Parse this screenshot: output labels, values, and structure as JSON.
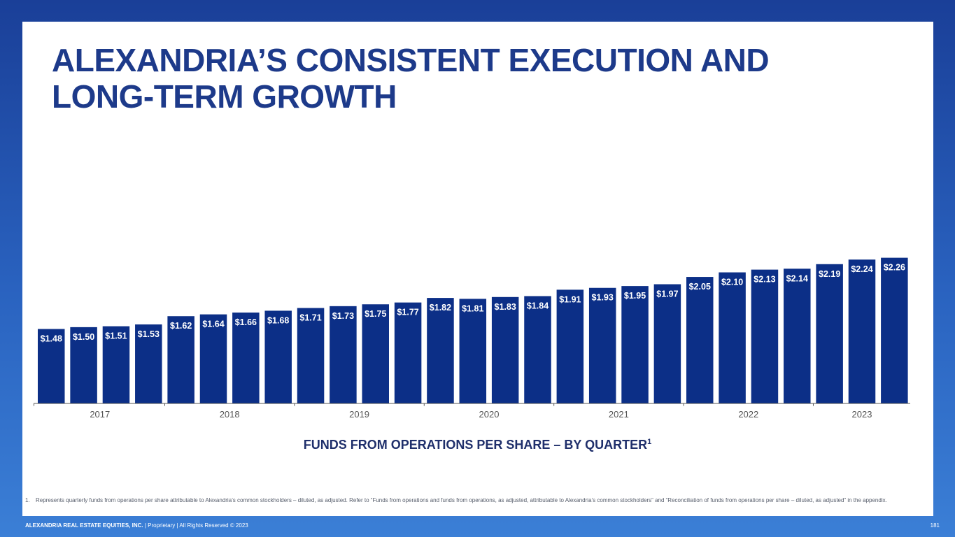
{
  "slide": {
    "title_lines": [
      "ALEXANDRIA’S CONSISTENT EXECUTION AND",
      "LONG-TERM GROWTH"
    ],
    "caption": "FUNDS FROM OPERATIONS PER SHARE – BY QUARTER",
    "caption_sup": "1",
    "footnote_number": "1.",
    "footnote_text": "Represents quarterly funds from operations per share attributable to Alexandria’s common stockholders – diluted, as adjusted. Refer to “Funds from operations and funds from operations, as adjusted, attributable to Alexandria’s common stockholders” and “Reconciliation of funds from operations per share – diluted, as adjusted” in the appendix.",
    "footer_company": "ALEXANDRIA REAL ESTATE EQUITIES, INC.",
    "footer_rest": " | Proprietary | All Rights Reserved © 2023",
    "page_number": "181"
  },
  "colors": {
    "bar": "#0c2f87",
    "bar_label": "#ffffff",
    "axis": "#555555",
    "year_label": "#555555",
    "title": "#1d3a8a"
  },
  "chart_data": {
    "type": "bar",
    "title": "FUNDS FROM OPERATIONS PER SHARE – BY QUARTER",
    "xlabel": "",
    "ylabel": "",
    "ylim": [
      0,
      2.3
    ],
    "grid": false,
    "value_prefix": "$",
    "categories": [
      "2017 Q1",
      "2017 Q2",
      "2017 Q3",
      "2017 Q4",
      "2018 Q1",
      "2018 Q2",
      "2018 Q3",
      "2018 Q4",
      "2019 Q1",
      "2019 Q2",
      "2019 Q3",
      "2019 Q4",
      "2020 Q1",
      "2020 Q2",
      "2020 Q3",
      "2020 Q4",
      "2021 Q1",
      "2021 Q2",
      "2021 Q3",
      "2021 Q4",
      "2022 Q1",
      "2022 Q2",
      "2022 Q3",
      "2022 Q4",
      "2023 Q1",
      "2023 Q2",
      "2023 Q3"
    ],
    "values": [
      1.48,
      1.5,
      1.51,
      1.53,
      1.62,
      1.64,
      1.66,
      1.68,
      1.71,
      1.73,
      1.75,
      1.77,
      1.82,
      1.81,
      1.83,
      1.84,
      1.91,
      1.93,
      1.95,
      1.97,
      2.05,
      2.1,
      2.13,
      2.14,
      2.19,
      2.24,
      2.26
    ],
    "year_groups": [
      {
        "label": "2017",
        "count": 4
      },
      {
        "label": "2018",
        "count": 4
      },
      {
        "label": "2019",
        "count": 4
      },
      {
        "label": "2020",
        "count": 4
      },
      {
        "label": "2021",
        "count": 4
      },
      {
        "label": "2022",
        "count": 4
      },
      {
        "label": "2023",
        "count": 3
      }
    ]
  }
}
